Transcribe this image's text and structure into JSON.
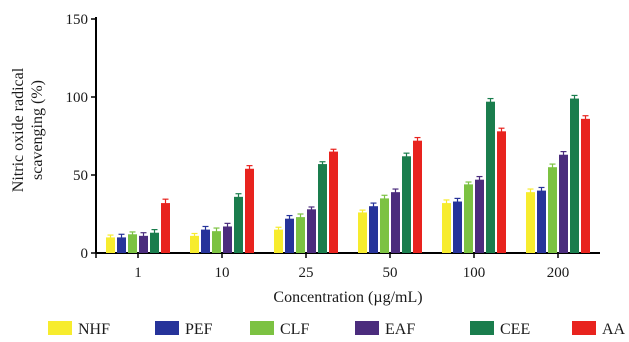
{
  "chart_data": {
    "type": "bar",
    "title": "",
    "xlabel": "Concentration (µg/mL)",
    "ylabel": "Nitric oxide radical scavenging (%)",
    "ylabel_lines": [
      "Nitric oxide radical",
      "scavenging (%)"
    ],
    "ylim": [
      0,
      150
    ],
    "yticks": [
      "0",
      "50",
      "100",
      "150"
    ],
    "categories": [
      "1",
      "10",
      "25",
      "50",
      "100",
      "200"
    ],
    "grid": false,
    "legend_position": "bottom",
    "series": [
      {
        "name": "NHF",
        "color": "#f7ec2e",
        "values": [
          10,
          11,
          15,
          26,
          32,
          39
        ],
        "errors": [
          1.5,
          1.5,
          1.5,
          1.5,
          2,
          2
        ]
      },
      {
        "name": "PEF",
        "color": "#26339a",
        "values": [
          10,
          15,
          22,
          30,
          33,
          40
        ],
        "errors": [
          2,
          2,
          2,
          2,
          2,
          2
        ]
      },
      {
        "name": "CLF",
        "color": "#7cc242",
        "values": [
          12,
          14,
          23,
          35,
          44,
          55
        ],
        "errors": [
          1.5,
          2,
          2,
          2,
          1.5,
          2
        ]
      },
      {
        "name": "EAF",
        "color": "#4b2c7d",
        "values": [
          11,
          17,
          28,
          39,
          47,
          63
        ],
        "errors": [
          2,
          2,
          1.5,
          2,
          2,
          2
        ]
      },
      {
        "name": "CEE",
        "color": "#1a7d4d",
        "values": [
          13,
          36,
          57,
          62,
          97,
          99
        ],
        "errors": [
          2,
          2,
          1.5,
          2,
          2,
          2
        ]
      },
      {
        "name": "AA",
        "color": "#e8231e",
        "values": [
          32,
          54,
          65,
          72,
          78,
          86
        ],
        "errors": [
          2.5,
          2,
          1.5,
          2,
          2,
          2
        ]
      }
    ]
  }
}
